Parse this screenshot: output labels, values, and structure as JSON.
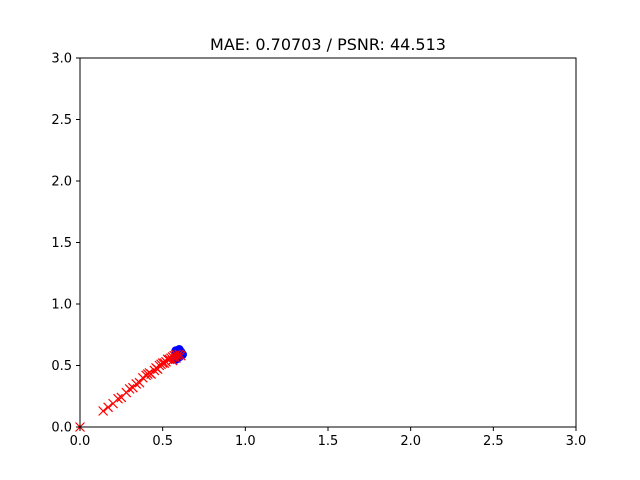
{
  "chart_data": {
    "type": "scatter",
    "title": "MAE: 0.70703 / PSNR: 44.513",
    "xlabel": "",
    "ylabel": "",
    "xlim": [
      0.0,
      3.0
    ],
    "ylim": [
      0.0,
      3.0
    ],
    "grid": false,
    "x_ticks": [
      "0.0",
      "0.5",
      "1.0",
      "1.5",
      "2.0",
      "2.5",
      "3.0"
    ],
    "y_ticks": [
      "0.0",
      "0.5",
      "1.0",
      "1.5",
      "2.0",
      "2.5",
      "3.0"
    ],
    "series": [
      {
        "marker": "circle",
        "color": "#0000ff",
        "points": [
          [
            0.57,
            0.56
          ],
          [
            0.58,
            0.58
          ],
          [
            0.59,
            0.6
          ],
          [
            0.59,
            0.62
          ],
          [
            0.6,
            0.61
          ],
          [
            0.61,
            0.59
          ],
          [
            0.6,
            0.57
          ],
          [
            0.58,
            0.55
          ],
          [
            0.61,
            0.58
          ],
          [
            0.6,
            0.6
          ],
          [
            0.59,
            0.56
          ],
          [
            0.62,
            0.59
          ],
          [
            0.58,
            0.62
          ],
          [
            0.61,
            0.61
          ],
          [
            0.6,
            0.63
          ]
        ]
      },
      {
        "marker": "x",
        "color": "#ff0000",
        "points": [
          [
            0.0,
            0.0
          ],
          [
            0.14,
            0.13
          ],
          [
            0.17,
            0.16
          ],
          [
            0.2,
            0.19
          ],
          [
            0.23,
            0.23
          ],
          [
            0.25,
            0.24
          ],
          [
            0.28,
            0.28
          ],
          [
            0.3,
            0.31
          ],
          [
            0.32,
            0.32
          ],
          [
            0.34,
            0.35
          ],
          [
            0.36,
            0.36
          ],
          [
            0.38,
            0.4
          ],
          [
            0.4,
            0.42
          ],
          [
            0.41,
            0.43
          ],
          [
            0.42,
            0.44
          ],
          [
            0.43,
            0.43
          ],
          [
            0.45,
            0.46
          ],
          [
            0.46,
            0.48
          ],
          [
            0.47,
            0.47
          ],
          [
            0.48,
            0.5
          ],
          [
            0.49,
            0.51
          ],
          [
            0.5,
            0.52
          ],
          [
            0.51,
            0.52
          ],
          [
            0.52,
            0.53
          ],
          [
            0.53,
            0.55
          ],
          [
            0.54,
            0.55
          ],
          [
            0.55,
            0.56
          ],
          [
            0.56,
            0.57
          ],
          [
            0.57,
            0.58
          ],
          [
            0.58,
            0.59
          ],
          [
            0.59,
            0.58
          ],
          [
            0.6,
            0.59
          ],
          [
            0.61,
            0.58
          ],
          [
            0.56,
            0.54
          ],
          [
            0.58,
            0.56
          ]
        ]
      }
    ]
  }
}
